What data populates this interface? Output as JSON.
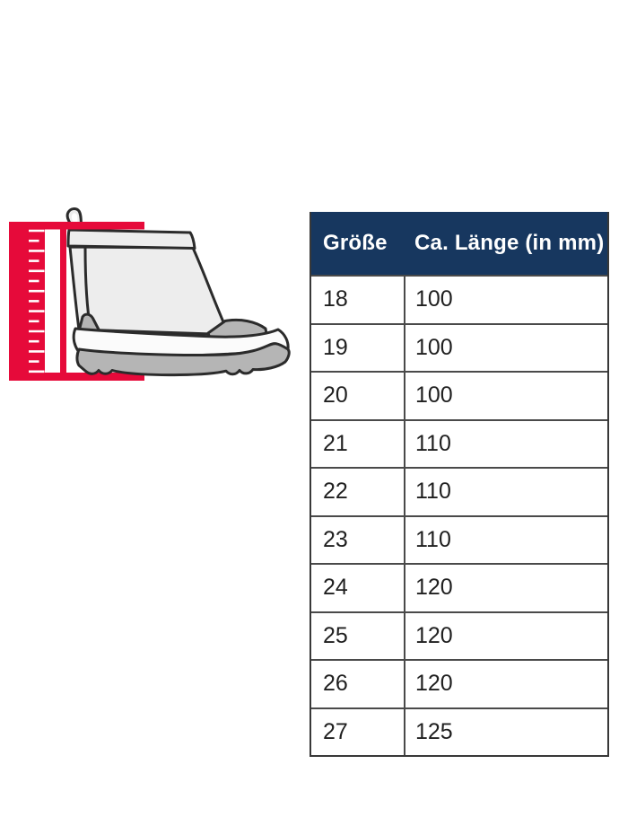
{
  "page": {
    "background": "#ffffff"
  },
  "illustration": {
    "name": "rubber-boot-with-measuring-ruler",
    "accent_red": "#e60a3a",
    "boot_fill": "#ededed",
    "boot_detail_gray": "#b5b5b5",
    "outline": "#2b2b2b"
  },
  "table": {
    "header_bg": "#17375f",
    "header_text_color": "#ffffff",
    "headers": {
      "size": "Größe",
      "length": "Ca. Länge (in mm)"
    },
    "rows": [
      {
        "size": "18",
        "length_mm": "100"
      },
      {
        "size": "19",
        "length_mm": "100"
      },
      {
        "size": "20",
        "length_mm": "100"
      },
      {
        "size": "21",
        "length_mm": "110"
      },
      {
        "size": "22",
        "length_mm": "110"
      },
      {
        "size": "23",
        "length_mm": "110"
      },
      {
        "size": "24",
        "length_mm": "120"
      },
      {
        "size": "25",
        "length_mm": "120"
      },
      {
        "size": "26",
        "length_mm": "120"
      },
      {
        "size": "27",
        "length_mm": "125"
      }
    ]
  }
}
